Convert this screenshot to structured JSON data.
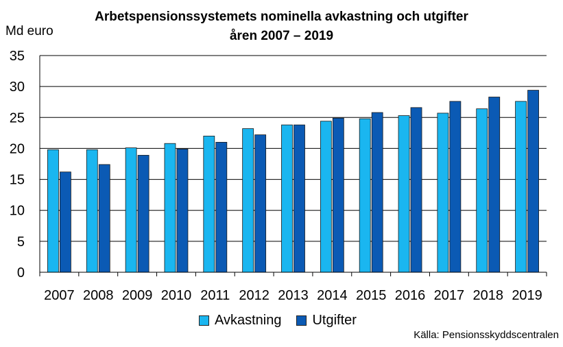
{
  "chart_data": {
    "type": "bar",
    "title_line1": "Arbetspensionssystemets nominella avkastning och utgifter",
    "title_line2": "åren 2007 – 2019",
    "ylabel": "Md euro",
    "ylim": [
      0,
      35
    ],
    "yticks": [
      0,
      5,
      10,
      15,
      20,
      25,
      30,
      35
    ],
    "grid": true,
    "legend_position": "bottom",
    "categories": [
      "2007",
      "2008",
      "2009",
      "2010",
      "2011",
      "2012",
      "2013",
      "2014",
      "2015",
      "2016",
      "2017",
      "2018",
      "2019"
    ],
    "series": [
      {
        "name": "Avkastning",
        "color": "#1ab6f0",
        "values": [
          19.8,
          19.8,
          20.1,
          20.8,
          22.0,
          23.2,
          23.8,
          24.4,
          24.8,
          25.3,
          25.7,
          26.4,
          27.6
        ]
      },
      {
        "name": "Utgifter",
        "color": "#0b5ab4",
        "values": [
          16.2,
          17.4,
          18.9,
          19.9,
          21.0,
          22.2,
          23.8,
          24.9,
          25.8,
          26.6,
          27.6,
          28.3,
          29.4
        ]
      }
    ],
    "source": "Källa: Pensionsskyddscentralen"
  }
}
